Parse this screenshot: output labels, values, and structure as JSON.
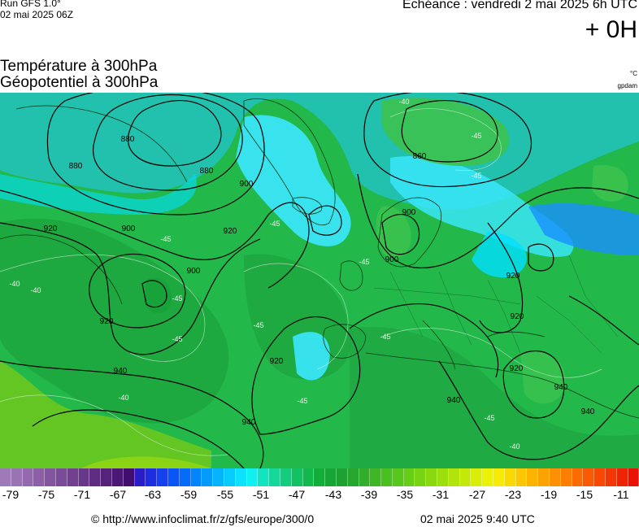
{
  "header": {
    "run_label": "Run GFS 1.0°",
    "run_date": "02 mai 2025 06Z",
    "echeance": "Echéance : vendredi 2 mai 2025 6h UTC",
    "offset": "+ 0H"
  },
  "titles": {
    "line1": "Température à 300hPa",
    "line2": "Géopotentiel à 300hPa",
    "unit_temp": "°C",
    "unit_geo": "gpdam"
  },
  "map": {
    "geopotential_labels": [
      "880",
      "880",
      "860",
      "900",
      "880",
      "900",
      "920",
      "900",
      "900",
      "920",
      "900",
      "920",
      "920",
      "940",
      "920",
      "920",
      "940",
      "940",
      "920",
      "940",
      "940"
    ],
    "temperature_labels": [
      "-40",
      "-45",
      "-45",
      "-45",
      "-45",
      "-45",
      "-40",
      "-45",
      "-45",
      "-45",
      "-40",
      "-45",
      "-40",
      "-45",
      "-40",
      "-45"
    ],
    "colors": {
      "ocean_dark": "#17a23a",
      "mid_green": "#22b84a",
      "light_green": "#3cc24f",
      "cyan": "#00e0ff",
      "light_cyan": "#3be8ff",
      "blue": "#1a90ff",
      "yellow_green": "#7ccf1c",
      "contour": "#000000",
      "isotherm": "#cfe8d0"
    }
  },
  "colorbar": {
    "colors": [
      "#9e7bb8",
      "#9a73b3",
      "#9469ad",
      "#8c5fa6",
      "#84559f",
      "#7a4b98",
      "#714190",
      "#683789",
      "#5e2d82",
      "#56237b",
      "#4b1875",
      "#410e6f",
      "#2a1cc8",
      "#1f2de0",
      "#1440ee",
      "#0a55f6",
      "#046cfb",
      "#0284fd",
      "#039cfd",
      "#05b4fd",
      "#08cbfd",
      "#0ce2fd",
      "#10f0f0",
      "#12e4c0",
      "#14d89a",
      "#13cc7c",
      "#12c262",
      "#12b84c",
      "#14ad3c",
      "#19a436",
      "#1ea033",
      "#27a62f",
      "#33ae2a",
      "#3eb625",
      "#4abf20",
      "#57c71b",
      "#66ce17",
      "#78d413",
      "#8ad910",
      "#9cdf0d",
      "#b0e40b",
      "#c4e909",
      "#d8ee07",
      "#ecf205",
      "#f7ea04",
      "#f9d804",
      "#fbc603",
      "#fcb403",
      "#fda203",
      "#fd9003",
      "#fd7e03",
      "#fd6c03",
      "#fb5a04",
      "#f84804",
      "#f43604",
      "#ef2405",
      "#e91205"
    ],
    "ticks": [
      "-79",
      "-75",
      "-71",
      "-67",
      "-63",
      "-59",
      "-55",
      "-51",
      "-47",
      "-43",
      "-39",
      "-35",
      "-31",
      "-27",
      "-23",
      "-19",
      "-15",
      "-11"
    ]
  },
  "footer": {
    "url": "© http://www.infoclimat.fr/z/gfs/europe/300/0",
    "timestamp": "02 mai 2025  9:40 UTC"
  }
}
